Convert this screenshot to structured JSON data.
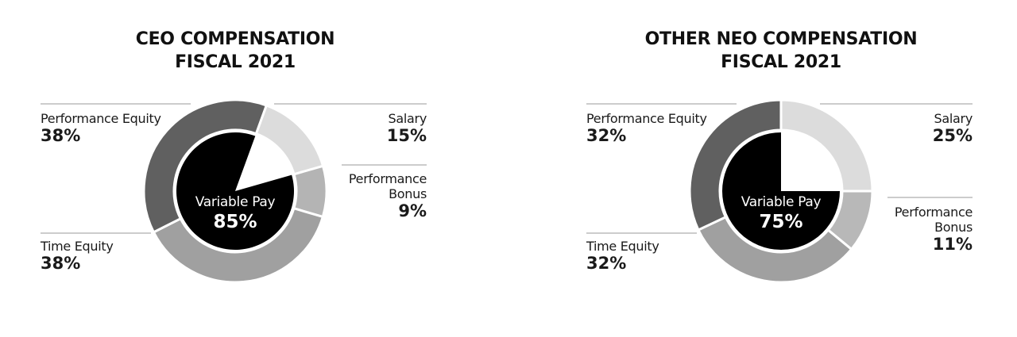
{
  "chart_data": [
    {
      "type": "donut",
      "title": "CEO COMPENSATION",
      "subtitle": "FISCAL 2021",
      "categories": [
        "Salary",
        "Performance Bonus",
        "Time Equity",
        "Performance Equity"
      ],
      "values": [
        15,
        9,
        38,
        38
      ],
      "value_labels": [
        "15%",
        "9%",
        "38%",
        "38%"
      ],
      "colors": [
        "#dcdcdc",
        "#b4b4b4",
        "#a0a0a0",
        "#606060"
      ],
      "inner": {
        "name": "Variable Pay",
        "value": 85,
        "value_label": "85%",
        "color": "#000000"
      }
    },
    {
      "type": "donut",
      "title": "OTHER NEO COMPENSATION",
      "subtitle": "FISCAL 2021",
      "categories": [
        "Salary",
        "Performance Bonus",
        "Time Equity",
        "Performance Equity"
      ],
      "values": [
        25,
        11,
        32,
        32
      ],
      "value_labels": [
        "25%",
        "11%",
        "32%",
        "32%"
      ],
      "colors": [
        "#dcdcdc",
        "#b8b8b8",
        "#a0a0a0",
        "#606060"
      ],
      "inner": {
        "name": "Variable Pay",
        "value": 75,
        "value_label": "75%",
        "color": "#000000"
      }
    }
  ]
}
